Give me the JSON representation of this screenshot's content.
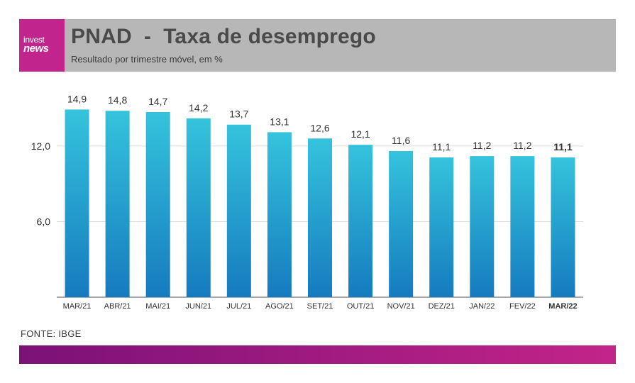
{
  "brand": {
    "logo_top": "invest",
    "logo_bottom": "news",
    "accent_color": "#c1248d",
    "header_bg": "#b7b7b7"
  },
  "header": {
    "title": "PNAD  -  Taxa de desemprego",
    "subtitle": "Resultado por trimestre móvel, em %"
  },
  "watermark": "investnews",
  "source": "FONTE: IBGE",
  "chart_data": {
    "type": "bar",
    "categories": [
      "MAR/21",
      "ABR/21",
      "MAI/21",
      "JUN/21",
      "JUL/21",
      "AGO/21",
      "SET/21",
      "OUT/21",
      "NOV/21",
      "DEZ/21",
      "JAN/22",
      "FEV/22",
      "MAR/22"
    ],
    "values": [
      14.9,
      14.8,
      14.7,
      14.2,
      13.7,
      13.1,
      12.6,
      12.1,
      11.6,
      11.1,
      11.2,
      11.2,
      11.1
    ],
    "value_labels": [
      "14,9",
      "14,8",
      "14,7",
      "14,2",
      "13,7",
      "13,1",
      "12,6",
      "12,1",
      "11,6",
      "11,1",
      "11,2",
      "11,2",
      "11,1"
    ],
    "highlight_index": 12,
    "yticks": [
      6.0,
      12.0
    ],
    "ytick_labels": [
      "6,0",
      "12,0"
    ],
    "ylim": [
      0,
      16.5
    ],
    "grid": true,
    "bar_color_top": "#35c3dc",
    "bar_color_bottom": "#157bbf"
  }
}
